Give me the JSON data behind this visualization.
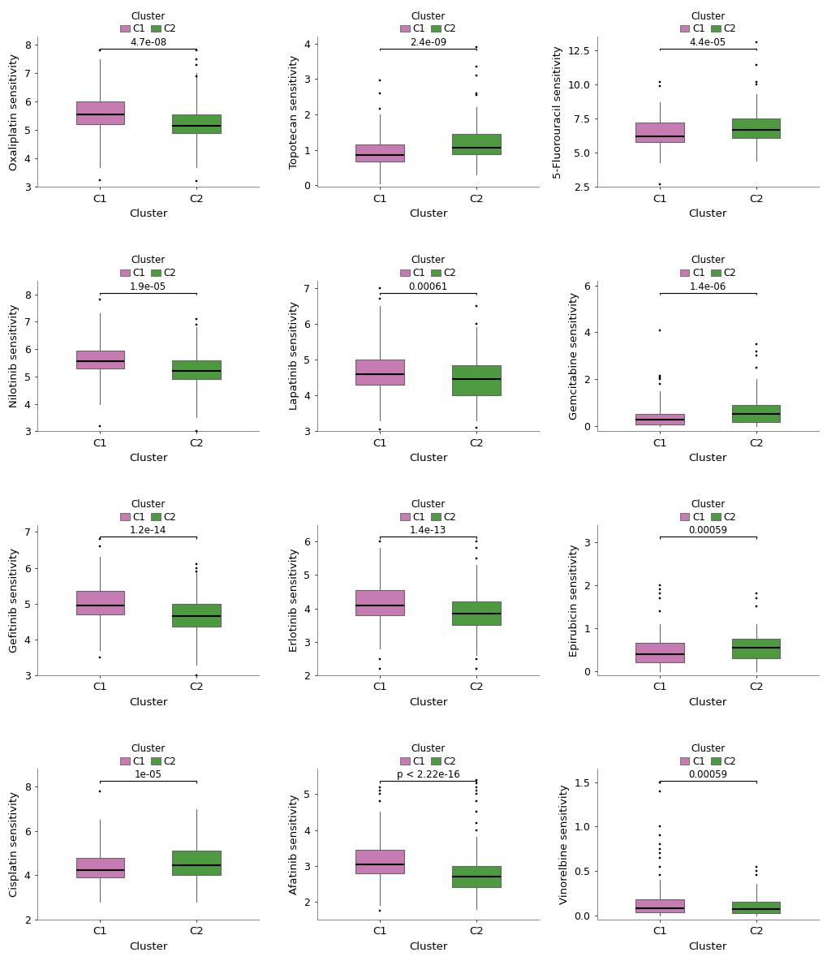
{
  "plots": [
    {
      "ylabel": "Oxaliplatin sensitivity",
      "pvalue": "4.7e-08",
      "ylim": [
        3,
        8.3
      ],
      "yticks": [
        3,
        4,
        5,
        6,
        7,
        8
      ],
      "C1": {
        "q1": 5.2,
        "median": 5.55,
        "q3": 6.0,
        "whislo": 3.7,
        "whishi": 7.5,
        "fliers": [
          3.25,
          7.8
        ]
      },
      "C2": {
        "q1": 4.9,
        "median": 5.15,
        "q3": 5.55,
        "whislo": 3.7,
        "whishi": 7.0,
        "fliers": [
          3.2,
          6.9,
          7.3,
          7.5,
          7.8
        ]
      }
    },
    {
      "ylabel": "Topotecan sensitivity",
      "pvalue": "2.4e-09",
      "ylim": [
        -0.05,
        4.2
      ],
      "yticks": [
        0,
        1,
        2,
        3,
        4
      ],
      "C1": {
        "q1": 0.68,
        "median": 0.85,
        "q3": 1.15,
        "whislo": 0.05,
        "whishi": 2.0,
        "fliers": [
          2.15,
          2.6,
          2.95
        ]
      },
      "C2": {
        "q1": 0.88,
        "median": 1.05,
        "q3": 1.45,
        "whislo": 0.3,
        "whishi": 2.2,
        "fliers": [
          2.55,
          2.6,
          3.1,
          3.35,
          3.9
        ]
      }
    },
    {
      "ylabel": "5-Fluorouracil sensitivity",
      "pvalue": "4.4e-05",
      "ylim": [
        2.5,
        13.5
      ],
      "yticks": [
        2.5,
        5.0,
        7.5,
        10.0,
        12.5
      ],
      "C1": {
        "q1": 5.8,
        "median": 6.2,
        "q3": 7.2,
        "whislo": 4.3,
        "whishi": 8.7,
        "fliers": [
          2.7,
          9.9,
          10.2
        ]
      },
      "C2": {
        "q1": 6.1,
        "median": 6.7,
        "q3": 7.5,
        "whislo": 4.4,
        "whishi": 9.3,
        "fliers": [
          10.0,
          10.2,
          11.4,
          13.1
        ]
      }
    },
    {
      "ylabel": "Nilotinib sensitivity",
      "pvalue": "1.9e-05",
      "ylim": [
        3.0,
        8.5
      ],
      "yticks": [
        3,
        4,
        5,
        6,
        7,
        8
      ],
      "C1": {
        "q1": 5.3,
        "median": 5.55,
        "q3": 5.95,
        "whislo": 4.0,
        "whishi": 7.3,
        "fliers": [
          3.2,
          7.8
        ]
      },
      "C2": {
        "q1": 4.9,
        "median": 5.2,
        "q3": 5.6,
        "whislo": 3.5,
        "whishi": 6.8,
        "fliers": [
          3.0,
          6.9,
          7.1
        ]
      }
    },
    {
      "ylabel": "Lapatinib sensitivity",
      "pvalue": "0.00061",
      "ylim": [
        3.0,
        7.2
      ],
      "yticks": [
        3,
        4,
        5,
        6,
        7
      ],
      "C1": {
        "q1": 4.3,
        "median": 4.6,
        "q3": 5.0,
        "whislo": 3.3,
        "whishi": 6.5,
        "fliers": [
          3.05,
          6.7,
          7.0
        ]
      },
      "C2": {
        "q1": 4.0,
        "median": 4.45,
        "q3": 4.85,
        "whislo": 3.3,
        "whishi": 5.9,
        "fliers": [
          3.1,
          6.0,
          6.5
        ]
      }
    },
    {
      "ylabel": "Gemcitabine sensitivity",
      "pvalue": "1.4e-06",
      "ylim": [
        -0.2,
        6.2
      ],
      "yticks": [
        0,
        2,
        4,
        6
      ],
      "C1": {
        "q1": 0.1,
        "median": 0.3,
        "q3": 0.55,
        "whislo": 0.0,
        "whishi": 1.5,
        "fliers": [
          1.8,
          2.0,
          2.1,
          2.15,
          4.1
        ]
      },
      "C2": {
        "q1": 0.2,
        "median": 0.55,
        "q3": 0.9,
        "whislo": 0.0,
        "whishi": 2.0,
        "fliers": [
          2.5,
          3.0,
          3.2,
          3.5
        ]
      }
    },
    {
      "ylabel": "Gefitinib sensitivity",
      "pvalue": "1.2e-14",
      "ylim": [
        3.0,
        7.2
      ],
      "yticks": [
        3,
        4,
        5,
        6,
        7
      ],
      "C1": {
        "q1": 4.7,
        "median": 4.95,
        "q3": 5.35,
        "whislo": 3.7,
        "whishi": 6.3,
        "fliers": [
          3.5,
          6.6,
          6.8
        ]
      },
      "C2": {
        "q1": 4.35,
        "median": 4.65,
        "q3": 5.0,
        "whislo": 3.3,
        "whishi": 5.9,
        "fliers": [
          3.0,
          5.9,
          6.0,
          6.1
        ]
      }
    },
    {
      "ylabel": "Erlotinib sensitivity",
      "pvalue": "1.4e-13",
      "ylim": [
        2.0,
        6.5
      ],
      "yticks": [
        2,
        3,
        4,
        5,
        6
      ],
      "C1": {
        "q1": 3.8,
        "median": 4.1,
        "q3": 4.55,
        "whislo": 2.8,
        "whishi": 5.8,
        "fliers": [
          2.2,
          2.5,
          6.0
        ]
      },
      "C2": {
        "q1": 3.5,
        "median": 3.85,
        "q3": 4.2,
        "whislo": 2.6,
        "whishi": 5.3,
        "fliers": [
          2.2,
          2.5,
          5.5,
          5.8,
          6.0
        ]
      }
    },
    {
      "ylabel": "Epirubicin sensitivity",
      "pvalue": "0.00059",
      "ylim": [
        -0.1,
        3.4
      ],
      "yticks": [
        0,
        1,
        2,
        3
      ],
      "C1": {
        "q1": 0.2,
        "median": 0.4,
        "q3": 0.65,
        "whislo": 0.0,
        "whishi": 1.1,
        "fliers": [
          1.4,
          1.7,
          1.8,
          1.9,
          2.0
        ]
      },
      "C2": {
        "q1": 0.3,
        "median": 0.55,
        "q3": 0.75,
        "whislo": 0.0,
        "whishi": 1.1,
        "fliers": [
          1.5,
          1.7,
          1.8
        ]
      }
    },
    {
      "ylabel": "Cisplatin sensitivity",
      "pvalue": "1e-05",
      "ylim": [
        2.0,
        8.8
      ],
      "yticks": [
        2,
        4,
        6,
        8
      ],
      "C1": {
        "q1": 3.9,
        "median": 4.25,
        "q3": 4.8,
        "whislo": 2.8,
        "whishi": 6.5,
        "fliers": [
          7.8
        ]
      },
      "C2": {
        "q1": 4.0,
        "median": 4.45,
        "q3": 5.1,
        "whislo": 2.8,
        "whishi": 7.0,
        "fliers": []
      }
    },
    {
      "ylabel": "Afatinib sensitivity",
      "pvalue": "p < 2.22e-16",
      "ylim": [
        1.5,
        5.7
      ],
      "yticks": [
        2,
        3,
        4,
        5
      ],
      "C1": {
        "q1": 2.8,
        "median": 3.05,
        "q3": 3.45,
        "whislo": 1.9,
        "whishi": 4.5,
        "fliers": [
          1.75,
          4.8,
          5.0,
          5.1,
          5.2
        ]
      },
      "C2": {
        "q1": 2.4,
        "median": 2.7,
        "q3": 3.0,
        "whislo": 1.8,
        "whishi": 3.8,
        "fliers": [
          4.0,
          4.2,
          4.5,
          4.8,
          5.0,
          5.1,
          5.2,
          5.3,
          5.4
        ]
      }
    },
    {
      "ylabel": "Vinorelbine sensitivity",
      "pvalue": "0.00059",
      "ylim": [
        -0.05,
        1.65
      ],
      "yticks": [
        0.0,
        0.5,
        1.0,
        1.5
      ],
      "C1": {
        "q1": 0.03,
        "median": 0.08,
        "q3": 0.18,
        "whislo": 0.0,
        "whishi": 0.4,
        "fliers": [
          0.45,
          0.55,
          0.65,
          0.7,
          0.75,
          0.8,
          0.9,
          1.0,
          1.4,
          1.5
        ]
      },
      "C2": {
        "q1": 0.02,
        "median": 0.07,
        "q3": 0.15,
        "whislo": 0.0,
        "whishi": 0.35,
        "fliers": [
          0.45,
          0.5,
          0.55
        ]
      }
    }
  ],
  "color_C1": "#C77BB3",
  "color_C2": "#4E9A40",
  "edge_color": "#666666",
  "background_color": "#ffffff",
  "ncols": 3,
  "nrows": 4
}
